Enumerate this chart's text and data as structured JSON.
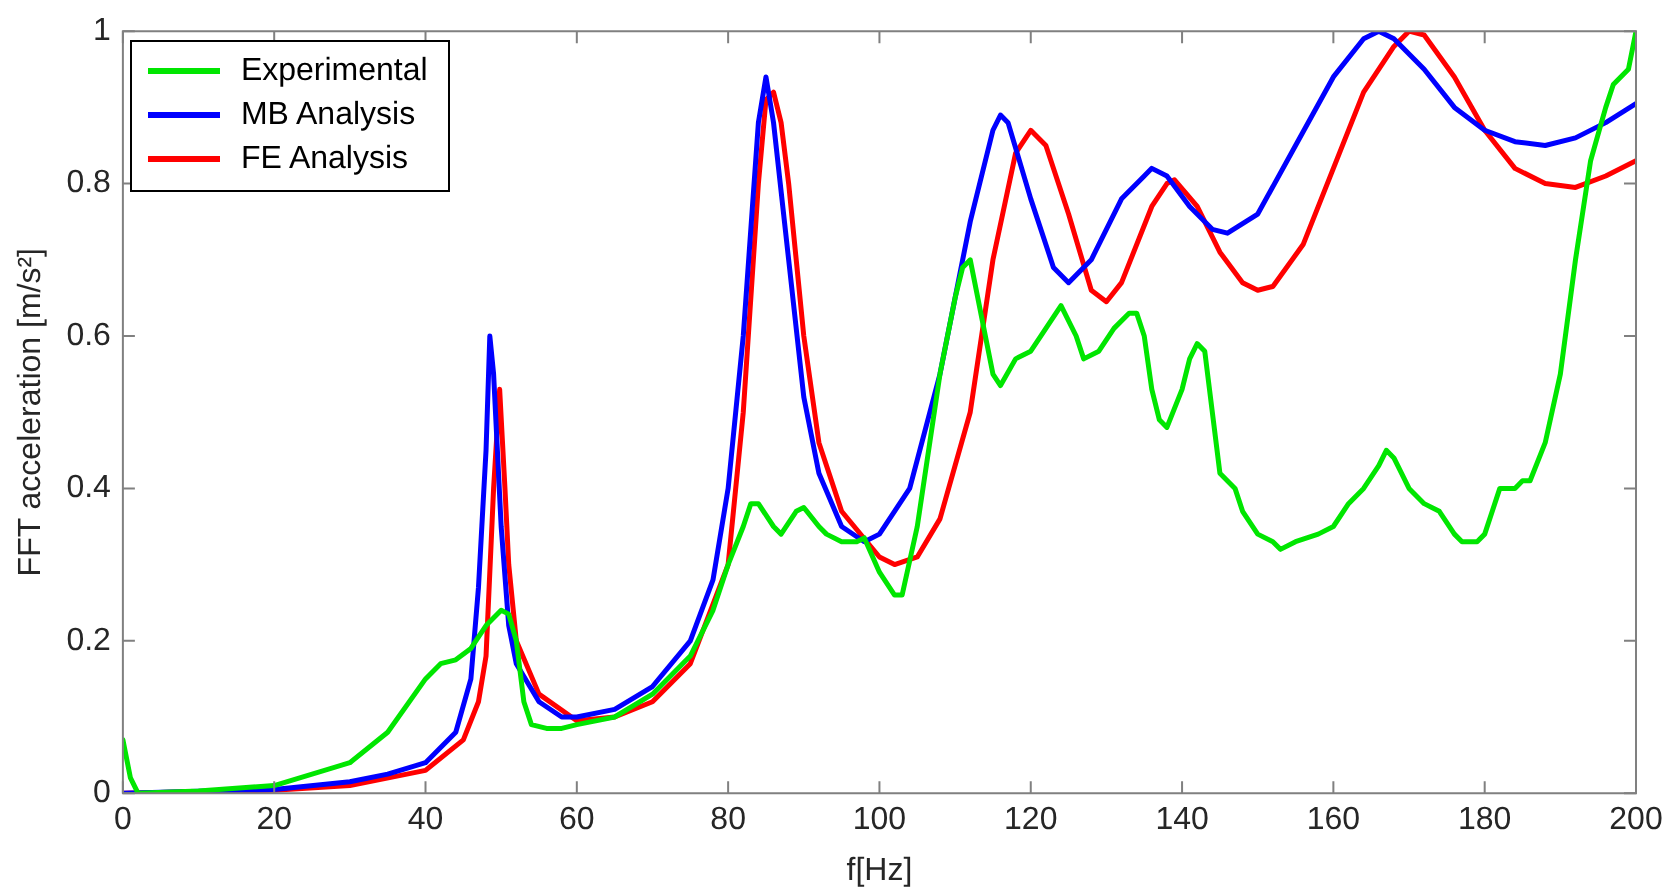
{
  "chart_data": {
    "type": "line",
    "xlabel": "f[Hz]",
    "ylabel": "FFT acceleration [m/s²]",
    "xlim": [
      0,
      200
    ],
    "xticks": [
      0,
      20,
      40,
      60,
      80,
      100,
      120,
      140,
      160,
      180,
      200
    ],
    "ylim": [
      0,
      1
    ],
    "yticks": [
      0,
      0.2,
      0.4,
      0.6,
      0.8,
      1
    ],
    "legend": "top left",
    "grid": false,
    "marker": "none",
    "line_style": "solid",
    "series": [
      {
        "name": "Experimental",
        "color": "#00e600",
        "x": [
          0,
          1,
          2,
          10,
          20,
          30,
          35,
          40,
          42,
          44,
          46,
          48,
          50,
          51,
          52,
          53,
          54,
          56,
          58,
          60,
          65,
          70,
          75,
          78,
          80,
          82,
          83,
          84,
          86,
          87,
          89,
          90,
          92,
          93,
          95,
          97,
          98,
          100,
          102,
          103,
          105,
          108,
          110,
          111,
          112,
          114,
          115,
          116,
          118,
          120,
          122,
          124,
          126,
          127,
          129,
          131,
          133,
          134,
          135,
          136,
          137,
          138,
          140,
          141,
          142,
          143,
          144,
          145,
          147,
          148,
          150,
          152,
          153,
          155,
          158,
          160,
          162,
          164,
          166,
          167,
          168,
          170,
          172,
          174,
          176,
          177,
          179,
          180,
          182,
          184,
          185,
          186,
          188,
          190,
          192,
          194,
          196,
          197,
          199,
          200
        ],
        "values": [
          0.07,
          0.02,
          0,
          0.003,
          0.01,
          0.04,
          0.08,
          0.15,
          0.17,
          0.175,
          0.19,
          0.22,
          0.24,
          0.235,
          0.2,
          0.12,
          0.09,
          0.085,
          0.085,
          0.09,
          0.1,
          0.13,
          0.18,
          0.24,
          0.3,
          0.35,
          0.38,
          0.38,
          0.35,
          0.34,
          0.37,
          0.375,
          0.35,
          0.34,
          0.33,
          0.33,
          0.335,
          0.29,
          0.26,
          0.26,
          0.35,
          0.55,
          0.65,
          0.69,
          0.7,
          0.6,
          0.55,
          0.535,
          0.57,
          0.58,
          0.61,
          0.64,
          0.6,
          0.57,
          0.58,
          0.61,
          0.63,
          0.63,
          0.6,
          0.53,
          0.49,
          0.48,
          0.53,
          0.57,
          0.59,
          0.58,
          0.5,
          0.42,
          0.4,
          0.37,
          0.34,
          0.33,
          0.32,
          0.33,
          0.34,
          0.35,
          0.38,
          0.4,
          0.43,
          0.45,
          0.44,
          0.4,
          0.38,
          0.37,
          0.34,
          0.33,
          0.33,
          0.34,
          0.4,
          0.4,
          0.41,
          0.41,
          0.46,
          0.55,
          0.7,
          0.83,
          0.9,
          0.93,
          0.95,
          1
        ]
      },
      {
        "name": "MB Analysis",
        "color": "#0000ff",
        "x": [
          0,
          20,
          30,
          35,
          40,
          44,
          46,
          47,
          48,
          48.5,
          49,
          50,
          51,
          52,
          55,
          58,
          60,
          65,
          70,
          75,
          78,
          80,
          82,
          84,
          85,
          86,
          88,
          90,
          92,
          95,
          98,
          100,
          104,
          108,
          112,
          115,
          116,
          117,
          120,
          123,
          125,
          128,
          132,
          135,
          136,
          138,
          141,
          144,
          146,
          150,
          155,
          160,
          164,
          166,
          168,
          172,
          176,
          180,
          184,
          188,
          192,
          196,
          200
        ],
        "values": [
          0,
          0.005,
          0.015,
          0.025,
          0.04,
          0.08,
          0.15,
          0.27,
          0.45,
          0.6,
          0.55,
          0.35,
          0.22,
          0.17,
          0.12,
          0.1,
          0.1,
          0.11,
          0.14,
          0.2,
          0.28,
          0.4,
          0.6,
          0.88,
          0.94,
          0.88,
          0.7,
          0.52,
          0.42,
          0.35,
          0.33,
          0.34,
          0.4,
          0.55,
          0.75,
          0.87,
          0.89,
          0.88,
          0.78,
          0.69,
          0.67,
          0.7,
          0.78,
          0.81,
          0.82,
          0.81,
          0.77,
          0.74,
          0.735,
          0.76,
          0.85,
          0.94,
          0.99,
          1,
          0.99,
          0.95,
          0.9,
          0.87,
          0.855,
          0.85,
          0.86,
          0.88,
          0.905
        ]
      },
      {
        "name": "FE Analysis",
        "color": "#ff0000",
        "x": [
          0,
          20,
          30,
          40,
          45,
          47,
          48,
          49,
          49.8,
          50.5,
          51,
          52,
          55,
          60,
          65,
          70,
          75,
          80,
          82,
          84,
          85,
          86,
          87,
          88,
          90,
          92,
          95,
          100,
          102,
          105,
          108,
          112,
          115,
          118,
          120,
          122,
          125,
          128,
          130,
          132,
          136,
          138,
          139,
          142,
          145,
          148,
          150,
          152,
          156,
          160,
          164,
          168,
          170,
          172,
          176,
          180,
          184,
          188,
          192,
          196,
          200
        ],
        "values": [
          0,
          0.004,
          0.01,
          0.03,
          0.07,
          0.12,
          0.18,
          0.4,
          0.53,
          0.4,
          0.3,
          0.2,
          0.13,
          0.095,
          0.1,
          0.12,
          0.17,
          0.3,
          0.5,
          0.8,
          0.91,
          0.92,
          0.88,
          0.8,
          0.6,
          0.46,
          0.37,
          0.31,
          0.3,
          0.31,
          0.36,
          0.5,
          0.7,
          0.84,
          0.87,
          0.85,
          0.76,
          0.66,
          0.645,
          0.67,
          0.77,
          0.8,
          0.805,
          0.77,
          0.71,
          0.67,
          0.66,
          0.665,
          0.72,
          0.82,
          0.92,
          0.98,
          1,
          0.995,
          0.94,
          0.87,
          0.82,
          0.8,
          0.795,
          0.81,
          0.83
        ]
      }
    ]
  }
}
